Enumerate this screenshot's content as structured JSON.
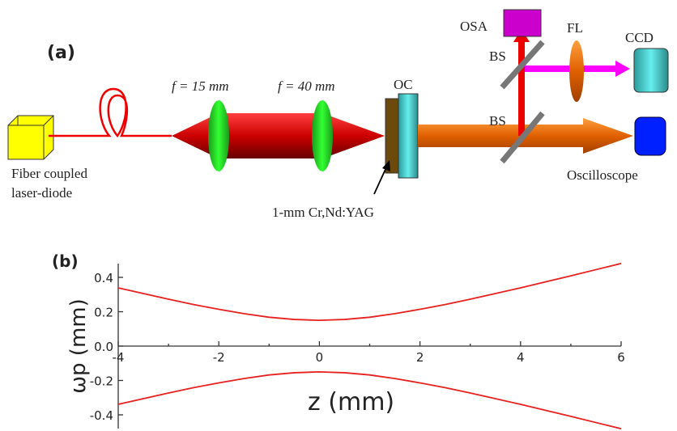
{
  "diagram": {
    "panel_label": "(a)",
    "labels": {
      "lens1": "f = 15 mm",
      "lens2": "f = 40 mm",
      "oc": "OC",
      "osa": "OSA",
      "fl": "FL",
      "ccd": "CCD",
      "bs_top": "BS",
      "bs_bottom": "BS",
      "source_line1": "Fiber coupled",
      "source_line2": "laser-diode",
      "crystal": "1-mm Cr,Nd:YAG",
      "oscilloscope": "Oscilloscope"
    }
  },
  "chart_data": {
    "type": "line",
    "panel_label": "(b)",
    "x_label": "z (mm)",
    "y_label": "ωp (mm)",
    "x": [
      -4,
      -3.5,
      -3,
      -2.5,
      -2,
      -1.5,
      -1,
      -0.5,
      0,
      0.5,
      1,
      1.5,
      2,
      2.5,
      3,
      3.5,
      4,
      4.5,
      5,
      5.5,
      6
    ],
    "series": [
      {
        "color": "#e8201e",
        "values": [
          0.339,
          0.306,
          0.273,
          0.242,
          0.214,
          0.189,
          0.168,
          0.155,
          0.15,
          0.155,
          0.168,
          0.189,
          0.214,
          0.242,
          0.273,
          0.306,
          0.339,
          0.374,
          0.409,
          0.445,
          0.481
        ]
      },
      {
        "color": "#e8201e",
        "values": [
          -0.339,
          -0.306,
          -0.273,
          -0.242,
          -0.214,
          -0.189,
          -0.168,
          -0.155,
          -0.15,
          -0.155,
          -0.168,
          -0.189,
          -0.214,
          -0.242,
          -0.273,
          -0.306,
          -0.339,
          -0.374,
          -0.409,
          -0.445,
          -0.481
        ]
      }
    ],
    "xlim": [
      -4,
      6
    ],
    "ylim": [
      -0.48,
      0.48
    ],
    "xticks": [
      -4,
      -2,
      0,
      2,
      4,
      6
    ],
    "yticks": [
      0.4,
      0.2,
      {
        "value": 0,
        "label": "0.0"
      },
      -0.2,
      -0.4
    ]
  }
}
